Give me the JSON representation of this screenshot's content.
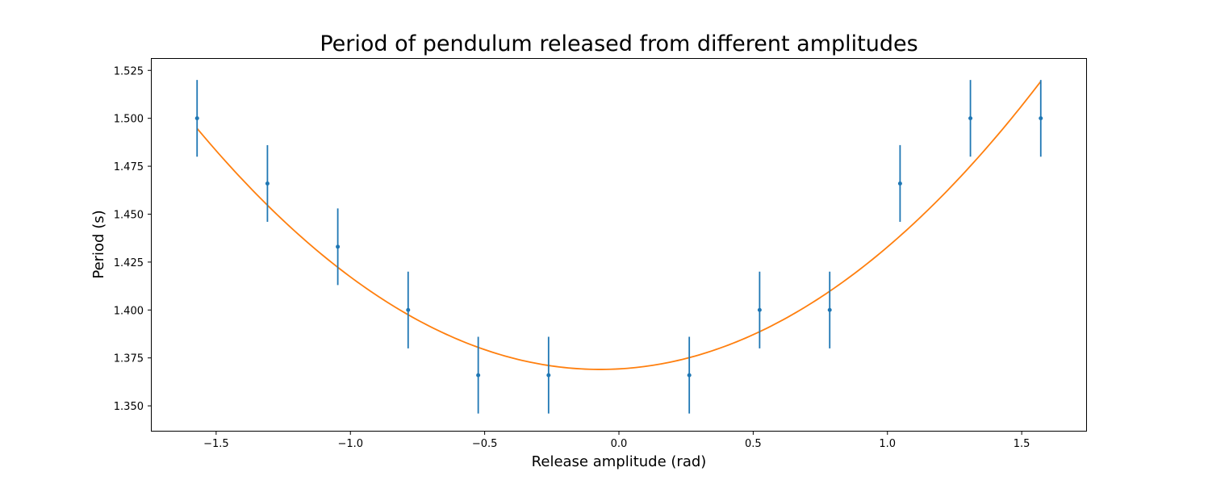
{
  "chart_data": {
    "type": "scatter",
    "title": "Period of pendulum released from different amplitudes",
    "xlabel": "Release amplitude (rad)",
    "ylabel": "Period (s)",
    "xlim": [
      -1.74,
      1.74
    ],
    "ylim": [
      1.337,
      1.531
    ],
    "xticks": [
      -1.5,
      -1.0,
      -0.5,
      0.0,
      0.5,
      1.0,
      1.5
    ],
    "xtick_labels": [
      "−1.5",
      "−1.0",
      "−0.5",
      "0.0",
      "0.5",
      "1.0",
      "1.5"
    ],
    "yticks": [
      1.35,
      1.375,
      1.4,
      1.425,
      1.45,
      1.475,
      1.5,
      1.525
    ],
    "ytick_labels": [
      "1.350",
      "1.375",
      "1.400",
      "1.425",
      "1.450",
      "1.475",
      "1.500",
      "1.525"
    ],
    "grid": false,
    "series": [
      {
        "kind": "errorbar",
        "color": "#1f77b4",
        "x": [
          -1.571,
          -1.309,
          -1.047,
          -0.785,
          -0.524,
          -0.262,
          0.262,
          0.524,
          0.785,
          1.047,
          1.309,
          1.571
        ],
        "y": [
          1.5,
          1.466,
          1.433,
          1.4,
          1.366,
          1.366,
          1.366,
          1.4,
          1.4,
          1.466,
          1.5,
          1.5
        ],
        "yerr": 0.02
      },
      {
        "kind": "fit-curve",
        "color": "#ff7f0e",
        "model": "quadratic",
        "vertex_x": -0.07,
        "vertex_y": 1.369,
        "coefficient": 0.0558,
        "x_range": [
          -1.571,
          1.571
        ]
      }
    ]
  }
}
